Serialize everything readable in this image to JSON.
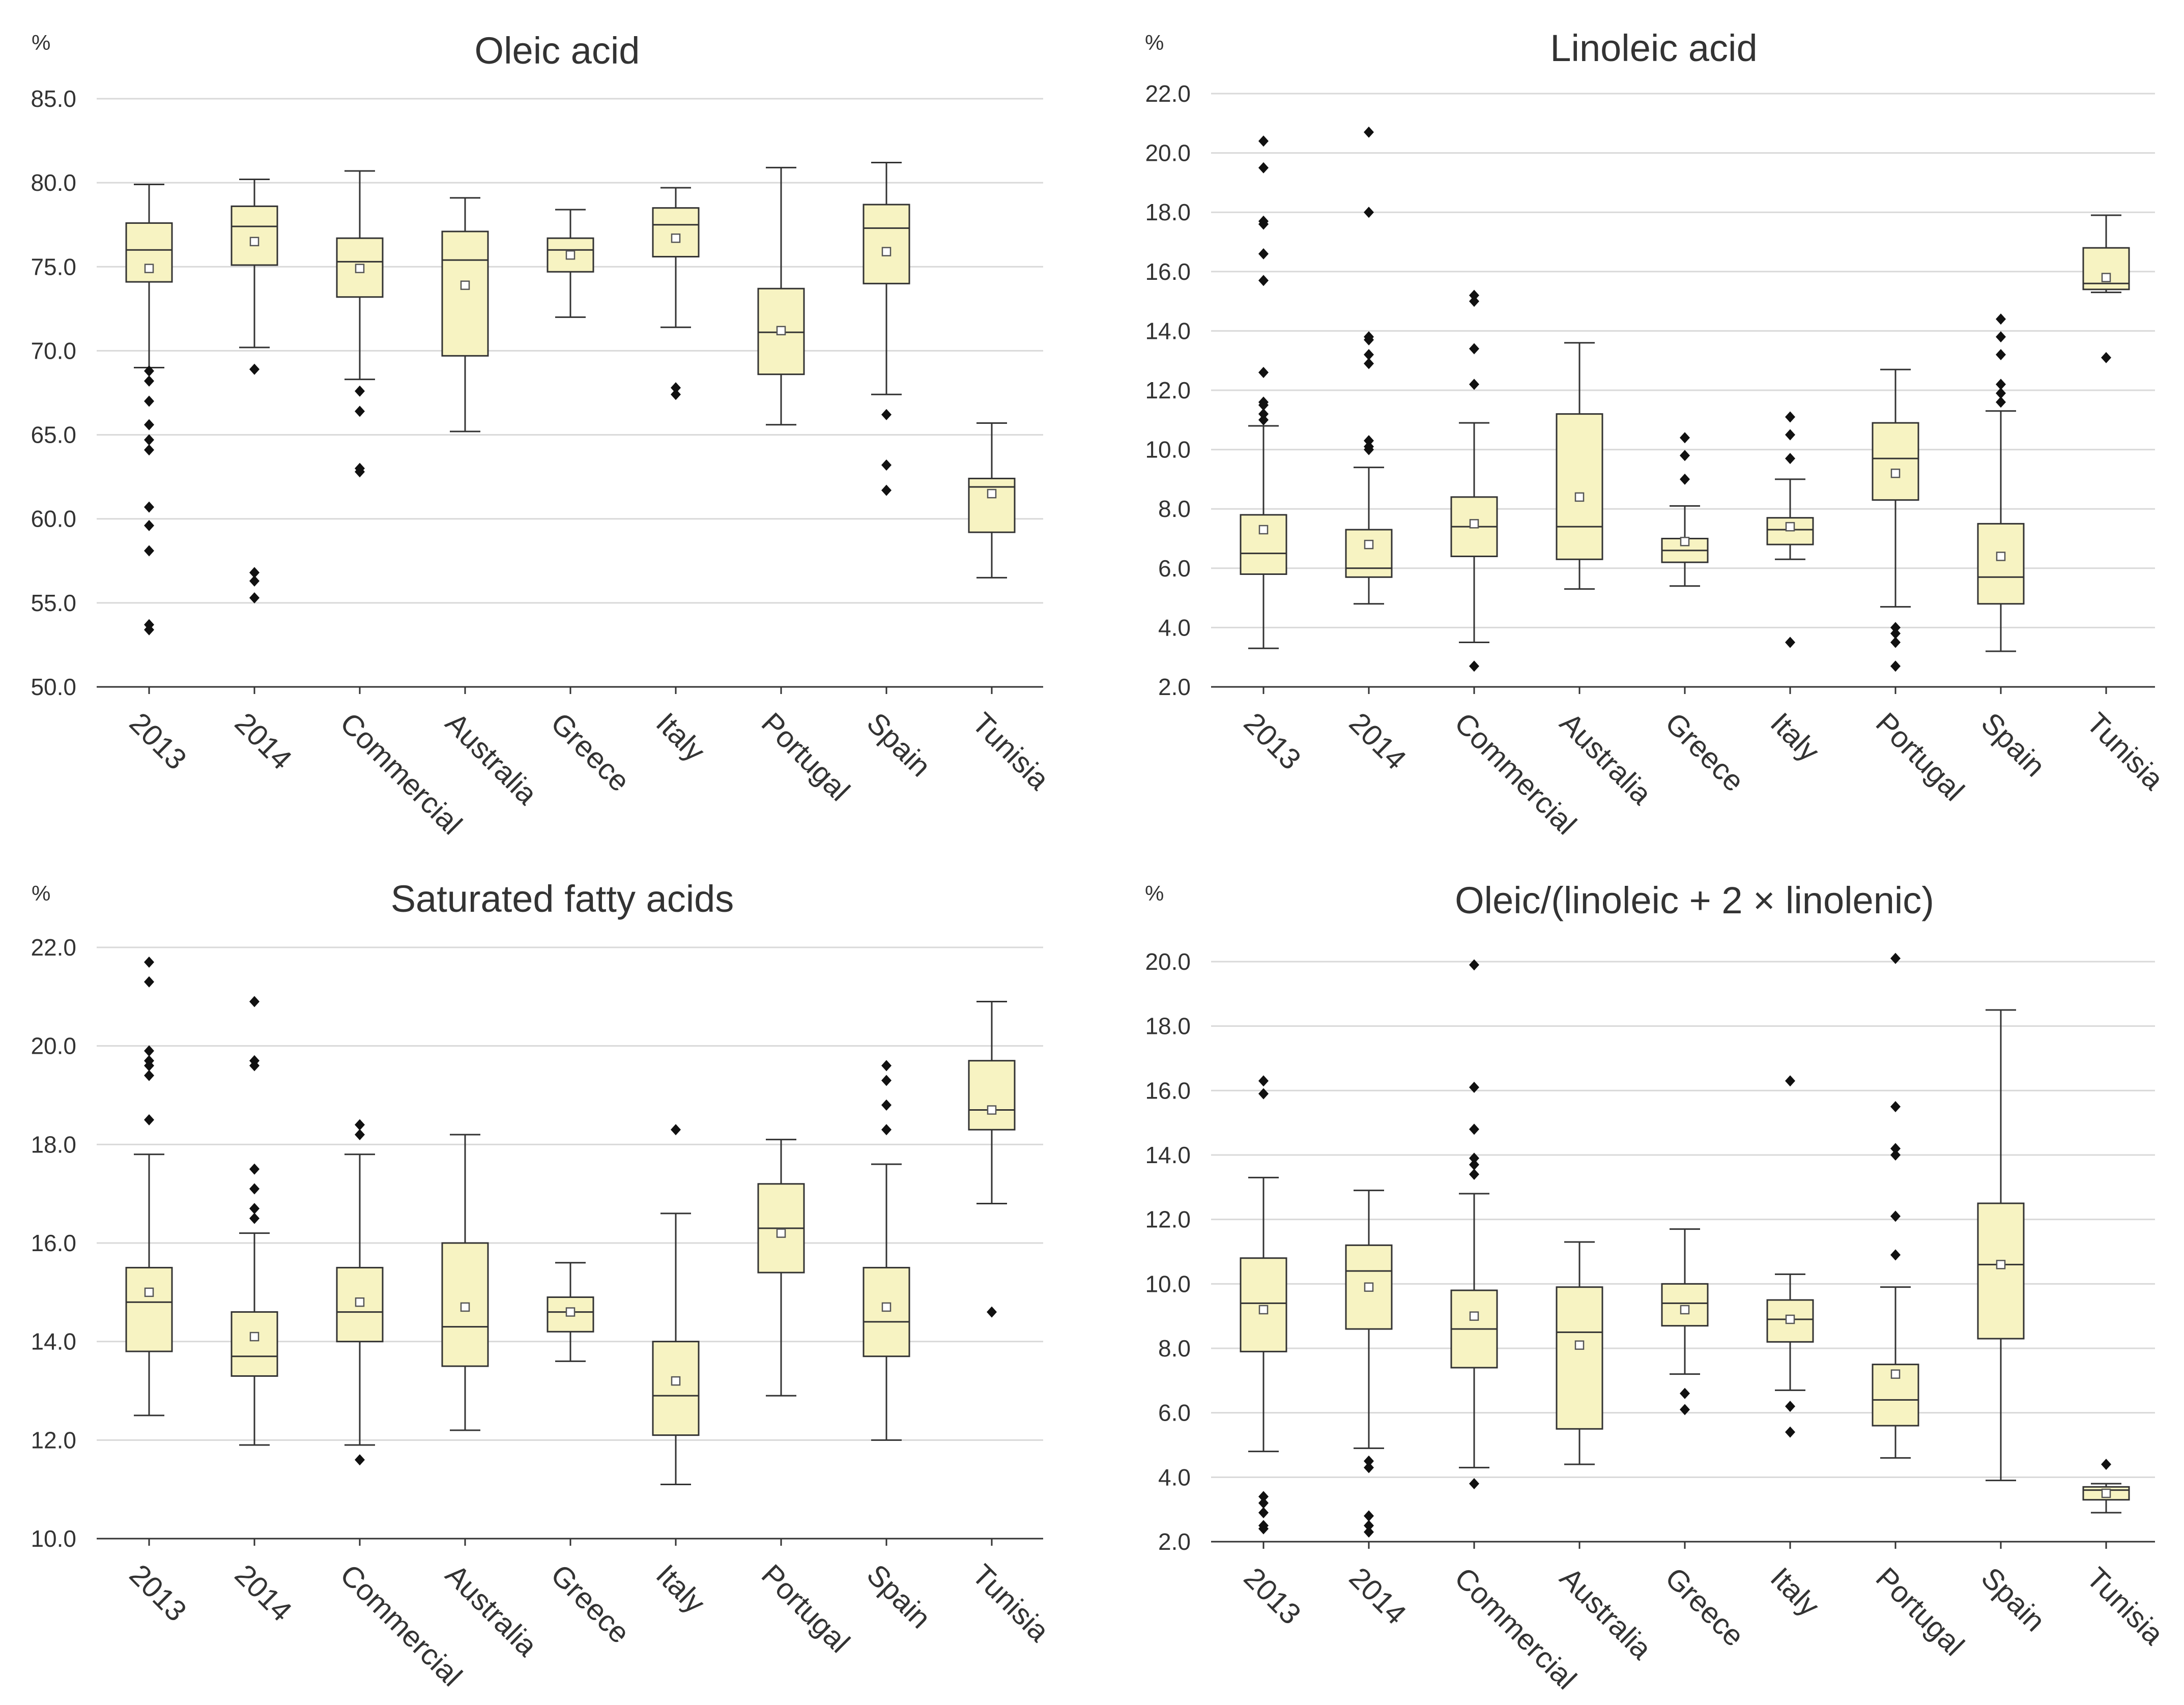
{
  "chart_data": [
    {
      "type": "box",
      "title": "Oleic acid",
      "ylabel": "%",
      "ylim": [
        50,
        85
      ],
      "yticks": [
        "50.0",
        "55.0",
        "60.0",
        "65.0",
        "70.0",
        "75.0",
        "80.0",
        "85.0"
      ],
      "categories": [
        "2013",
        "2014",
        "Commercial",
        "Australia",
        "Greece",
        "Italy",
        "Portugal",
        "Spain",
        "Tunisia"
      ],
      "boxes": [
        {
          "min": 69.0,
          "q1": 74.1,
          "median": 76.0,
          "q3": 77.6,
          "max": 79.9,
          "mean": 74.9,
          "outliers": [
            68.8,
            68.2,
            67.0,
            65.6,
            64.7,
            64.1,
            60.7,
            59.6,
            58.1,
            53.7,
            53.4
          ]
        },
        {
          "min": 70.2,
          "q1": 75.1,
          "median": 77.4,
          "q3": 78.6,
          "max": 80.2,
          "mean": 76.5,
          "outliers": [
            68.9,
            56.8,
            56.3,
            55.3
          ]
        },
        {
          "min": 68.3,
          "q1": 73.2,
          "median": 75.3,
          "q3": 76.7,
          "max": 80.7,
          "mean": 74.9,
          "outliers": [
            67.6,
            66.4,
            63.0,
            62.8
          ]
        },
        {
          "min": 65.2,
          "q1": 69.7,
          "median": 75.4,
          "q3": 77.1,
          "max": 79.1,
          "mean": 73.9,
          "outliers": []
        },
        {
          "min": 72.0,
          "q1": 74.7,
          "median": 76.0,
          "q3": 76.7,
          "max": 78.4,
          "mean": 75.7,
          "outliers": []
        },
        {
          "min": 71.4,
          "q1": 75.6,
          "median": 77.5,
          "q3": 78.5,
          "max": 79.7,
          "mean": 76.7,
          "outliers": [
            67.8,
            67.4
          ]
        },
        {
          "min": 65.6,
          "q1": 68.6,
          "median": 71.1,
          "q3": 73.7,
          "max": 80.9,
          "mean": 71.2,
          "outliers": []
        },
        {
          "min": 67.4,
          "q1": 74.0,
          "median": 77.3,
          "q3": 78.7,
          "max": 81.2,
          "mean": 75.9,
          "outliers": [
            66.2,
            63.2,
            61.7
          ]
        },
        {
          "min": 56.5,
          "q1": 59.2,
          "median": 61.9,
          "q3": 62.4,
          "max": 65.7,
          "mean": 61.5,
          "outliers": []
        }
      ]
    },
    {
      "type": "box",
      "title": "Linoleic acid",
      "ylabel": "%",
      "ylim": [
        2,
        22
      ],
      "yticks": [
        "2.0",
        "4.0",
        "6.0",
        "8.0",
        "10.0",
        "12.0",
        "14.0",
        "16.0",
        "18.0",
        "20.0",
        "22.0"
      ],
      "categories": [
        "2013",
        "2014",
        "Commercial",
        "Australia",
        "Greece",
        "Italy",
        "Portugal",
        "Spain",
        "Tunisia"
      ],
      "boxes": [
        {
          "min": 3.3,
          "q1": 5.8,
          "median": 6.5,
          "q3": 7.8,
          "max": 10.8,
          "mean": 7.3,
          "outliers": [
            20.4,
            19.5,
            17.7,
            17.6,
            16.6,
            15.7,
            12.6,
            11.6,
            11.5,
            11.2,
            11.0
          ]
        },
        {
          "min": 4.8,
          "q1": 5.7,
          "median": 6.0,
          "q3": 7.3,
          "max": 9.4,
          "mean": 6.8,
          "outliers": [
            20.7,
            18.0,
            13.8,
            13.7,
            13.2,
            12.9,
            10.3,
            10.1,
            10.0
          ]
        },
        {
          "min": 3.5,
          "q1": 6.4,
          "median": 7.4,
          "q3": 8.4,
          "max": 10.9,
          "mean": 7.5,
          "outliers": [
            15.2,
            15.0,
            13.4,
            12.2,
            2.7
          ]
        },
        {
          "min": 5.3,
          "q1": 6.3,
          "median": 7.4,
          "q3": 11.2,
          "max": 13.6,
          "mean": 8.4,
          "outliers": []
        },
        {
          "min": 5.4,
          "q1": 6.2,
          "median": 6.6,
          "q3": 7.0,
          "max": 8.1,
          "mean": 6.9,
          "outliers": [
            10.4,
            9.8,
            9.0
          ]
        },
        {
          "min": 6.3,
          "q1": 6.8,
          "median": 7.3,
          "q3": 7.7,
          "max": 9.0,
          "mean": 7.4,
          "outliers": [
            11.1,
            10.5,
            9.7,
            3.5
          ]
        },
        {
          "min": 4.7,
          "q1": 8.3,
          "median": 9.7,
          "q3": 10.9,
          "max": 12.7,
          "mean": 9.2,
          "outliers": [
            4.0,
            3.8,
            3.5,
            2.7
          ]
        },
        {
          "min": 3.2,
          "q1": 4.8,
          "median": 5.7,
          "q3": 7.5,
          "max": 11.3,
          "mean": 6.4,
          "outliers": [
            14.4,
            13.8,
            13.2,
            12.2,
            11.9,
            11.6
          ]
        },
        {
          "min": 15.3,
          "q1": 15.4,
          "median": 15.6,
          "q3": 16.8,
          "max": 17.9,
          "mean": 15.8,
          "outliers": [
            13.1
          ]
        }
      ]
    },
    {
      "type": "box",
      "title": "Saturated fatty acids",
      "ylabel": "%",
      "ylim": [
        10,
        22
      ],
      "yticks": [
        "10.0",
        "12.0",
        "14.0",
        "16.0",
        "18.0",
        "20.0",
        "22.0"
      ],
      "categories": [
        "2013",
        "2014",
        "Commercial",
        "Australia",
        "Greece",
        "Italy",
        "Portugal",
        "Spain",
        "Tunisia"
      ],
      "boxes": [
        {
          "min": 12.5,
          "q1": 13.8,
          "median": 14.8,
          "q3": 15.5,
          "max": 17.8,
          "mean": 15.0,
          "outliers": [
            21.7,
            21.3,
            19.9,
            19.7,
            19.6,
            19.4,
            18.5
          ]
        },
        {
          "min": 11.9,
          "q1": 13.3,
          "median": 13.7,
          "q3": 14.6,
          "max": 16.2,
          "mean": 14.1,
          "outliers": [
            20.9,
            19.7,
            19.6,
            17.5,
            17.1,
            16.7,
            16.5
          ]
        },
        {
          "min": 11.9,
          "q1": 14.0,
          "median": 14.6,
          "q3": 15.5,
          "max": 17.8,
          "mean": 14.8,
          "outliers": [
            18.4,
            18.2,
            11.6
          ]
        },
        {
          "min": 12.2,
          "q1": 13.5,
          "median": 14.3,
          "q3": 16.0,
          "max": 18.2,
          "mean": 14.7,
          "outliers": []
        },
        {
          "min": 13.6,
          "q1": 14.2,
          "median": 14.6,
          "q3": 14.9,
          "max": 15.6,
          "mean": 14.6,
          "outliers": []
        },
        {
          "min": 11.1,
          "q1": 12.1,
          "median": 12.9,
          "q3": 14.0,
          "max": 16.6,
          "mean": 13.2,
          "outliers": [
            18.3
          ]
        },
        {
          "min": 12.9,
          "q1": 15.4,
          "median": 16.3,
          "q3": 17.2,
          "max": 18.1,
          "mean": 16.2,
          "outliers": []
        },
        {
          "min": 12.0,
          "q1": 13.7,
          "median": 14.4,
          "q3": 15.5,
          "max": 17.6,
          "mean": 14.7,
          "outliers": [
            19.6,
            19.3,
            18.8,
            18.3
          ]
        },
        {
          "min": 16.8,
          "q1": 18.3,
          "median": 18.7,
          "q3": 19.7,
          "max": 20.9,
          "mean": 18.7,
          "outliers": [
            14.6
          ]
        }
      ]
    },
    {
      "type": "box",
      "title": "Oleic/(linoleic + 2 × linolenic)",
      "ylabel": "%",
      "ylim": [
        2,
        20
      ],
      "yticks": [
        "2.0",
        "4.0",
        "6.0",
        "8.0",
        "10.0",
        "12.0",
        "14.0",
        "16.0",
        "18.0",
        "20.0"
      ],
      "categories": [
        "2013",
        "2014",
        "Commercial",
        "Australia",
        "Greece",
        "Italy",
        "Portugal",
        "Spain",
        "Tunisia"
      ],
      "boxes": [
        {
          "min": 4.8,
          "q1": 7.9,
          "median": 9.4,
          "q3": 10.8,
          "max": 13.3,
          "mean": 9.2,
          "outliers": [
            16.3,
            15.9,
            3.4,
            3.2,
            2.9,
            2.5,
            2.4
          ]
        },
        {
          "min": 4.9,
          "q1": 8.6,
          "median": 10.4,
          "q3": 11.2,
          "max": 12.9,
          "mean": 9.9,
          "outliers": [
            4.5,
            4.3,
            2.8,
            2.5,
            2.3
          ]
        },
        {
          "min": 4.3,
          "q1": 7.4,
          "median": 8.6,
          "q3": 9.8,
          "max": 12.8,
          "mean": 9.0,
          "outliers": [
            19.9,
            16.1,
            14.8,
            13.9,
            13.7,
            13.4,
            3.8
          ]
        },
        {
          "min": 4.4,
          "q1": 5.5,
          "median": 8.5,
          "q3": 9.9,
          "max": 11.3,
          "mean": 8.1,
          "outliers": []
        },
        {
          "min": 7.2,
          "q1": 8.7,
          "median": 9.4,
          "q3": 10.0,
          "max": 11.7,
          "mean": 9.2,
          "outliers": [
            6.6,
            6.1
          ]
        },
        {
          "min": 6.7,
          "q1": 8.2,
          "median": 8.9,
          "q3": 9.5,
          "max": 10.3,
          "mean": 8.9,
          "outliers": [
            16.3,
            6.2,
            5.4
          ]
        },
        {
          "min": 4.6,
          "q1": 5.6,
          "median": 6.4,
          "q3": 7.5,
          "max": 9.9,
          "mean": 7.2,
          "outliers": [
            20.1,
            15.5,
            14.2,
            14.0,
            12.1,
            10.9
          ]
        },
        {
          "min": 3.9,
          "q1": 8.3,
          "median": 10.6,
          "q3": 12.5,
          "max": 18.5,
          "mean": 10.6,
          "outliers": []
        },
        {
          "min": 2.9,
          "q1": 3.3,
          "median": 3.6,
          "q3": 3.7,
          "max": 3.8,
          "mean": 3.5,
          "outliers": [
            4.4
          ]
        }
      ]
    }
  ]
}
